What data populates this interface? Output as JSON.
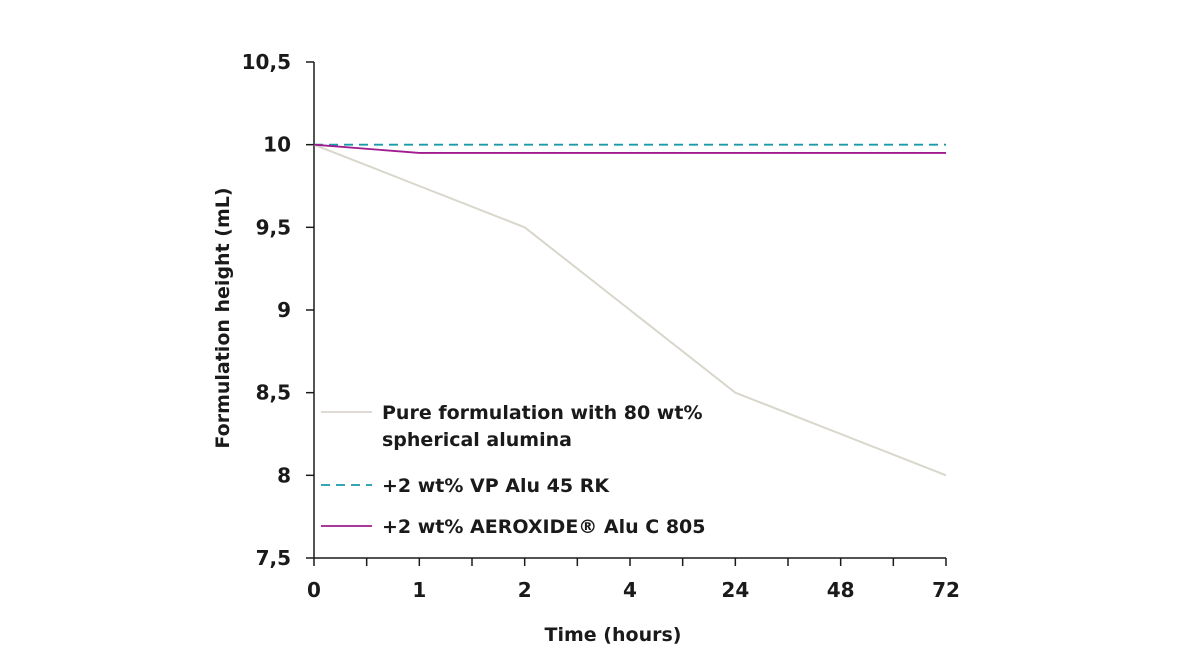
{
  "chart_data": {
    "type": "line",
    "title": "",
    "xlabel": "Time (hours)",
    "ylabel": "Formulation height (mL)",
    "categories": [
      "0",
      "1",
      "2",
      "4",
      "24",
      "48",
      "72"
    ],
    "y_tick_labels": [
      "7,5",
      "8",
      "8,5",
      "9",
      "9,5",
      "10",
      "10,5"
    ],
    "y_ticks": [
      7.5,
      8,
      8.5,
      9,
      9.5,
      10,
      10.5
    ],
    "ylim": [
      7.5,
      10.5
    ],
    "grid": false,
    "legend_position": "bottom-left",
    "series": [
      {
        "name": "Pure formulation with 80 wt% spherical alumina",
        "legend_lines": [
          "Pure formulation with 80 wt%",
          "spherical alumina"
        ],
        "values": [
          10,
          9.75,
          9.5,
          9.0,
          8.5,
          8.25,
          8.0
        ],
        "color": "#d9d6cc",
        "style": "solid"
      },
      {
        "name": "+2 wt% VP Alu 45 RK",
        "legend_lines": [
          "+2 wt% VP Alu 45 RK"
        ],
        "values": [
          10,
          10,
          10,
          10,
          10,
          10,
          10
        ],
        "color": "#1b9aaa",
        "style": "dashed"
      },
      {
        "name": "+2 wt% AEROXIDE® Alu C 805",
        "legend_lines": [
          "+2 wt% AEROXIDE® Alu C 805"
        ],
        "values": [
          10,
          9.95,
          9.95,
          9.95,
          9.95,
          9.95,
          9.95
        ],
        "color": "#a01c8e",
        "style": "solid"
      }
    ]
  }
}
